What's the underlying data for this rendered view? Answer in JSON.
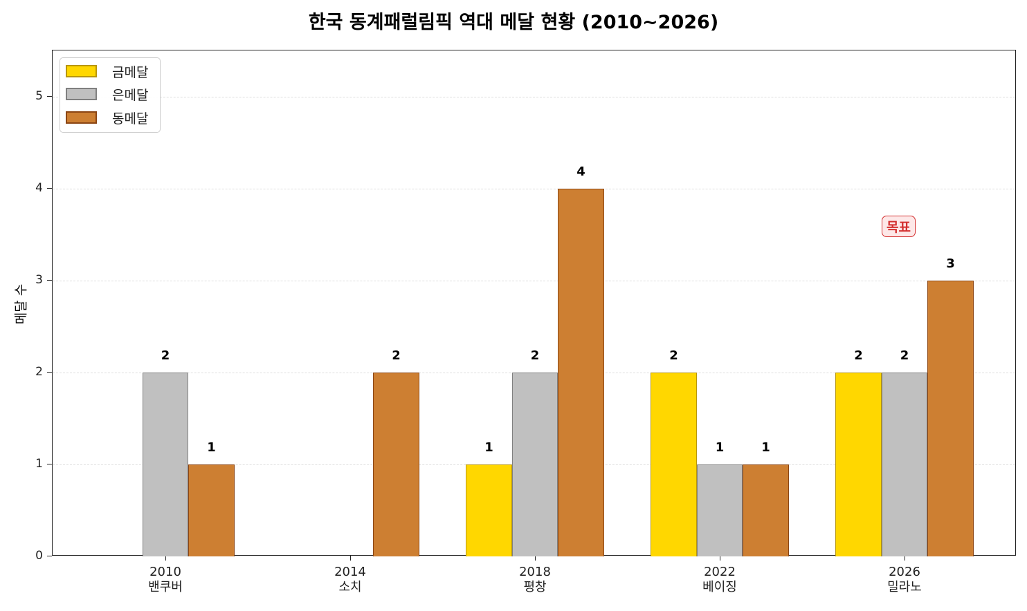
{
  "chart_data": {
    "type": "bar",
    "title": "한국 동계패럴림픽 역대 메달 현황 (2010~2026)",
    "xlabel": "",
    "ylabel": "메달 수",
    "ylim": [
      0,
      5.5
    ],
    "yticks": [
      "0",
      "1",
      "2",
      "3",
      "4",
      "5"
    ],
    "grid": "y dashed",
    "legend_position": "upper left",
    "categories": [
      "2010\n밴쿠버",
      "2014\n소치",
      "2018\n평창",
      "2022\n베이징",
      "2026\n밀라노"
    ],
    "category_years": [
      "2010",
      "2014",
      "2018",
      "2022",
      "2026"
    ],
    "category_cities": [
      "밴쿠버",
      "소치",
      "평창",
      "베이징",
      "밀라노"
    ],
    "series": [
      {
        "name": "금메달",
        "color": "#FFD700",
        "edge": "#B8960B",
        "values": [
          0,
          0,
          1,
          2,
          2
        ]
      },
      {
        "name": "은메달",
        "color": "#C0C0C0",
        "edge": "#808080",
        "values": [
          2,
          0,
          2,
          1,
          2
        ]
      },
      {
        "name": "동메달",
        "color": "#CD7F32",
        "edge": "#8B4513",
        "values": [
          1,
          2,
          4,
          1,
          3
        ]
      }
    ],
    "annotations": [
      {
        "text": "목표",
        "target_category": "2026\n밀라노",
        "color": "#d32f2f"
      }
    ]
  },
  "title": "한국 동계패럴림픽 역대 메달 현황 (2010~2026)",
  "ylabel": "메달 수",
  "legend": [
    "금메달",
    "은메달",
    "동메달"
  ],
  "annotation": "목표"
}
